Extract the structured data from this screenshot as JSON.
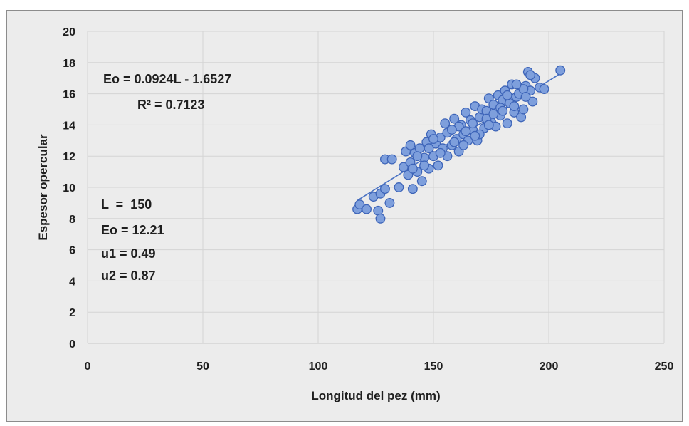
{
  "chart_data": {
    "type": "scatter",
    "title": "",
    "xlabel": "Longitud del pez (mm)",
    "ylabel": "Espesor opercular",
    "xlim": [
      0,
      250
    ],
    "ylim": [
      0,
      20
    ],
    "x_ticks": [
      "0",
      "50",
      "100",
      "150",
      "200",
      "250"
    ],
    "y_ticks": [
      "0",
      "2",
      "4",
      "6",
      "8",
      "10",
      "12",
      "14",
      "16",
      "18",
      "20"
    ],
    "grid": "vertical and horizontal",
    "legend": "none",
    "colors": {
      "marker_fill": "#7e9fdc",
      "marker_edge": "#3d64b8",
      "trendline": "#4a72c4",
      "background": "#ececec",
      "grid": "#d4d4d4"
    },
    "trendline": {
      "slope": 0.0924,
      "intercept": -1.6527,
      "x_range": [
        117,
        205
      ],
      "equation_label": "Eo = 0.0924L - 1.6527",
      "r2_label": "R² = 0.7123"
    },
    "annotations": [
      "L  =  150",
      "Eo = 12.21",
      "u1 = 0.49",
      "u2 = 0.87"
    ],
    "points": [
      [
        117,
        8.6
      ],
      [
        118,
        8.9
      ],
      [
        121,
        8.6
      ],
      [
        124,
        9.4
      ],
      [
        126,
        8.5
      ],
      [
        127,
        8.0
      ],
      [
        127,
        9.6
      ],
      [
        129,
        9.9
      ],
      [
        129,
        11.8
      ],
      [
        131,
        9.0
      ],
      [
        132,
        11.8
      ],
      [
        135,
        10.0
      ],
      [
        137,
        11.3
      ],
      [
        138,
        12.3
      ],
      [
        139,
        10.8
      ],
      [
        140,
        11.6
      ],
      [
        140,
        12.7
      ],
      [
        141,
        9.9
      ],
      [
        142,
        12.2
      ],
      [
        143,
        11.0
      ],
      [
        144,
        12.5
      ],
      [
        145,
        10.4
      ],
      [
        146,
        11.9
      ],
      [
        147,
        12.9
      ],
      [
        148,
        11.2
      ],
      [
        149,
        13.4
      ],
      [
        150,
        12.0
      ],
      [
        151,
        12.8
      ],
      [
        152,
        11.4
      ],
      [
        153,
        13.2
      ],
      [
        154,
        12.5
      ],
      [
        155,
        14.1
      ],
      [
        156,
        12.0
      ],
      [
        157,
        13.6
      ],
      [
        158,
        12.7
      ],
      [
        159,
        14.4
      ],
      [
        160,
        13.1
      ],
      [
        161,
        12.3
      ],
      [
        162,
        14.0
      ],
      [
        163,
        13.4
      ],
      [
        164,
        14.8
      ],
      [
        165,
        13.0
      ],
      [
        166,
        14.3
      ],
      [
        167,
        13.7
      ],
      [
        168,
        15.2
      ],
      [
        169,
        13.0
      ],
      [
        170,
        14.5
      ],
      [
        171,
        15.0
      ],
      [
        172,
        13.8
      ],
      [
        173,
        14.9
      ],
      [
        174,
        15.7
      ],
      [
        175,
        14.2
      ],
      [
        176,
        15.3
      ],
      [
        177,
        13.9
      ],
      [
        178,
        15.9
      ],
      [
        179,
        14.6
      ],
      [
        180,
        15.6
      ],
      [
        181,
        16.2
      ],
      [
        182,
        14.1
      ],
      [
        183,
        15.4
      ],
      [
        184,
        16.6
      ],
      [
        185,
        14.8
      ],
      [
        186,
        15.8
      ],
      [
        187,
        16.0
      ],
      [
        188,
        14.5
      ],
      [
        189,
        15.0
      ],
      [
        190,
        16.5
      ],
      [
        191,
        17.4
      ],
      [
        192,
        16.2
      ],
      [
        193,
        15.5
      ],
      [
        194,
        17.0
      ],
      [
        196,
        16.4
      ],
      [
        198,
        16.3
      ],
      [
        205,
        17.5
      ],
      [
        143,
        12.0
      ],
      [
        146,
        11.4
      ],
      [
        150,
        13.1
      ],
      [
        153,
        12.2
      ],
      [
        156,
        13.5
      ],
      [
        159,
        12.9
      ],
      [
        161,
        13.9
      ],
      [
        164,
        13.6
      ],
      [
        167,
        14.1
      ],
      [
        170,
        13.4
      ],
      [
        173,
        14.4
      ],
      [
        176,
        14.7
      ],
      [
        179,
        15.1
      ],
      [
        182,
        15.9
      ],
      [
        185,
        15.2
      ],
      [
        189,
        16.3
      ],
      [
        192,
        17.2
      ],
      [
        141,
        11.2
      ],
      [
        148,
        12.5
      ],
      [
        158,
        13.7
      ],
      [
        163,
        12.7
      ],
      [
        168,
        13.3
      ],
      [
        174,
        14.0
      ],
      [
        180,
        14.9
      ],
      [
        186,
        16.6
      ],
      [
        190,
        15.8
      ]
    ]
  }
}
